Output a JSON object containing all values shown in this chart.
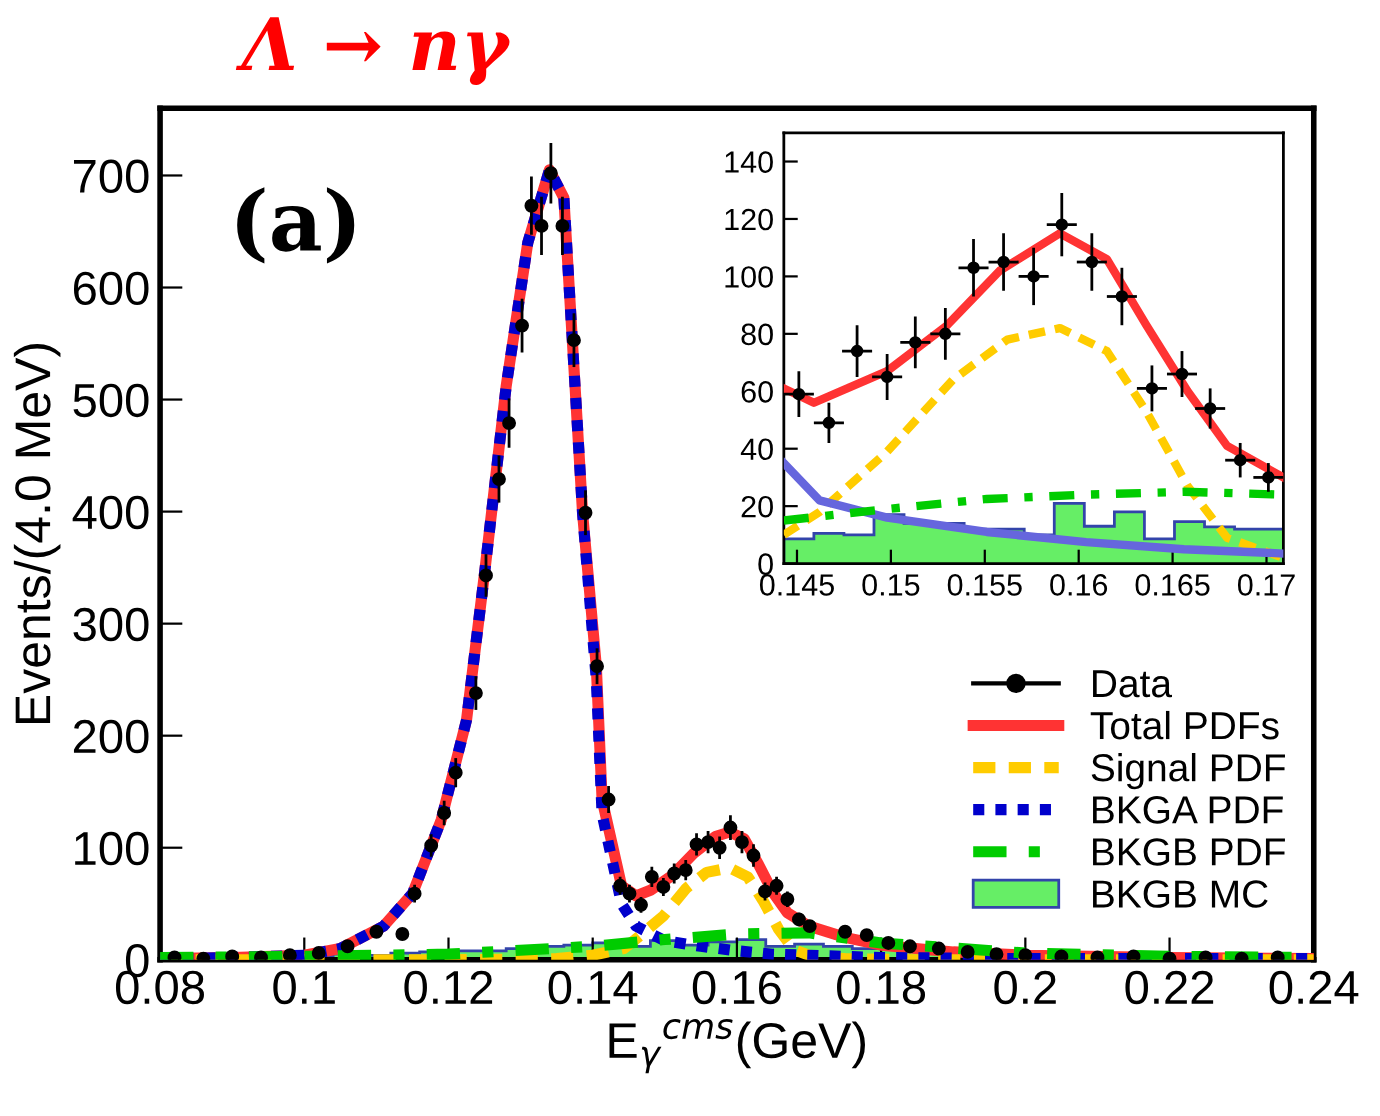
{
  "chart_data": [
    {
      "type": "line",
      "title": "Λ → nγ",
      "xlabel": "E$_{γ}$$^{cms}$(GeV)",
      "ylabel": "Events/(4.0 MeV)",
      "annotations": [
        "(a)"
      ],
      "xlim": [
        0.08,
        0.24
      ],
      "xticks": [
        0.08,
        0.1,
        0.12,
        0.14,
        0.16,
        0.18,
        0.2,
        0.22,
        0.24
      ],
      "ylim": [
        0,
        760
      ],
      "yticks": [
        0,
        100,
        200,
        300,
        400,
        500,
        600,
        700
      ],
      "grid": false,
      "legend": "bottom right",
      "series": [
        {
          "type": "scatter",
          "name": "Data",
          "color": "#000000",
          "marker": "circle",
          "x": [
            0.082,
            0.086,
            0.09,
            0.094,
            0.098,
            0.102,
            0.106,
            0.11,
            0.1136,
            0.1153,
            0.1176,
            0.1194,
            0.121,
            0.1238,
            0.1252,
            0.127,
            0.1284,
            0.1302,
            0.1315,
            0.1329,
            0.1342,
            0.1358,
            0.1374,
            0.139,
            0.1406,
            0.1422,
            0.1438,
            0.1451,
            0.1467,
            0.1482,
            0.1498,
            0.1513,
            0.1529,
            0.1544,
            0.156,
            0.1576,
            0.1591,
            0.1607,
            0.1623,
            0.1639,
            0.1655,
            0.167,
            0.1686,
            0.1701,
            0.175,
            0.178,
            0.181,
            0.184,
            0.188,
            0.192,
            0.196,
            0.2,
            0.205,
            0.21,
            0.215,
            0.22,
            0.225,
            0.23,
            0.235
          ],
          "values": [
            2,
            1,
            3,
            2,
            4,
            6,
            12,
            25,
            23,
            59,
            102,
            131,
            167,
            238,
            343,
            429,
            479,
            566,
            673,
            655,
            702,
            655,
            553,
            399,
            262,
            143,
            66,
            59,
            49,
            74,
            65,
            77,
            80,
            103,
            105,
            100,
            118,
            105,
            93,
            61,
            66,
            54,
            36,
            30,
            25,
            22,
            15,
            12,
            10,
            7,
            5,
            4,
            3,
            2,
            3,
            1,
            2,
            1,
            2
          ],
          "errors": [
            1,
            1,
            2,
            1,
            2,
            2,
            3,
            5,
            5,
            8,
            10,
            11,
            13,
            15,
            19,
            21,
            22,
            24,
            26,
            26,
            27,
            26,
            24,
            20,
            16,
            12,
            8,
            8,
            7,
            9,
            8,
            9,
            9,
            10,
            10,
            10,
            11,
            10,
            10,
            8,
            8,
            7,
            6,
            5,
            5,
            5,
            4,
            3,
            3,
            3,
            2,
            2,
            2,
            1,
            2,
            1,
            1,
            1,
            1
          ],
          "xerrors": [
            0.0008,
            0.0008,
            0.0008,
            0.0008,
            0.0008,
            0.0008,
            0.0008,
            0.0008,
            0.0008,
            0.0008,
            0.0008,
            0.0008,
            0.0008,
            0.0008,
            0.0008,
            0.0008,
            0.0008,
            0.0008,
            0.0008,
            0.0008,
            0.0008,
            0.0008,
            0.0008,
            0.0008,
            0.0008,
            0.0008,
            0.0008,
            0.0008,
            0.0008,
            0.0008,
            0.0008,
            0.0008,
            0.0008,
            0.0008,
            0.0008,
            0.0008,
            0.0008,
            0.0008,
            0.0008,
            0.0008,
            0.0008,
            0.0008,
            0.0008,
            0.0008,
            0.0008,
            0.0008,
            0.0008,
            0.0008,
            0.0008,
            0.0008,
            0.0008,
            0.0008,
            0.0008,
            0.0008,
            0.0008,
            0.0008,
            0.0008,
            0.0008,
            0.0008
          ]
        },
        {
          "type": "line",
          "name": "Total PDFs",
          "color": "#ff3333",
          "line_style": "solid",
          "x": [
            0.08,
            0.09,
            0.1,
            0.105,
            0.111,
            0.115,
            0.119,
            0.1225,
            0.125,
            0.128,
            0.131,
            0.134,
            0.136,
            0.1386,
            0.1405,
            0.1413,
            0.144,
            0.146,
            0.148,
            0.151,
            0.154,
            0.157,
            0.159,
            0.161,
            0.163,
            0.165,
            0.167,
            0.17,
            0.175,
            0.18,
            0.19,
            0.2,
            0.22,
            0.24
          ],
          "values": [
            1,
            2,
            4,
            10,
            30,
            59,
            125,
            214,
            345,
            512,
            640,
            705,
            680,
            398,
            262,
            143,
            66,
            57,
            62,
            75,
            95,
            110,
            114,
            108,
            85,
            60,
            42,
            30,
            20,
            13,
            7,
            4,
            2,
            1
          ]
        },
        {
          "type": "line",
          "name": "Signal PDF",
          "color": "#ffcc00",
          "line_style": "dashed",
          "x": [
            0.08,
            0.12,
            0.135,
            0.14,
            0.1443,
            0.1459,
            0.1498,
            0.153,
            0.1558,
            0.159,
            0.1615,
            0.1636,
            0.1658,
            0.1679,
            0.1709,
            0.175,
            0.185,
            0.24
          ],
          "values": [
            0,
            0,
            1,
            4,
            10,
            18,
            39,
            64,
            78,
            82,
            74,
            53,
            27,
            9,
            2,
            1,
            0,
            0
          ]
        },
        {
          "type": "line",
          "name": "BKGA PDF",
          "color": "#0000cc",
          "line_style": "dotted",
          "x": [
            0.08,
            0.09,
            0.1,
            0.105,
            0.111,
            0.115,
            0.119,
            0.1225,
            0.125,
            0.128,
            0.131,
            0.134,
            0.136,
            0.1386,
            0.1405,
            0.1413,
            0.144,
            0.146,
            0.15,
            0.155,
            0.16,
            0.165,
            0.17,
            0.18,
            0.2,
            0.24
          ],
          "values": [
            1,
            2,
            4,
            10,
            30,
            59,
            125,
            214,
            345,
            512,
            640,
            705,
            680,
            398,
            250,
            130,
            50,
            30,
            17,
            12,
            8,
            5,
            4,
            2,
            1,
            1
          ]
        },
        {
          "type": "line",
          "name": "BKGB PDF",
          "color": "#00cc00",
          "line_style": "dashdot",
          "x": [
            0.08,
            0.1,
            0.12,
            0.14,
            0.15,
            0.16,
            0.17,
            0.18,
            0.2,
            0.22,
            0.24
          ],
          "values": [
            2,
            3,
            5,
            12,
            18,
            23,
            24,
            15,
            6,
            3,
            2
          ]
        },
        {
          "type": "histogram",
          "name": "BKGB MC",
          "color": "#66ee66",
          "bins": [
            0.08,
            0.084,
            0.088,
            0.092,
            0.096,
            0.1,
            0.104,
            0.108,
            0.112,
            0.116,
            0.12,
            0.124,
            0.128,
            0.132,
            0.136,
            0.14,
            0.144,
            0.148,
            0.152,
            0.156,
            0.16,
            0.164,
            0.168,
            0.172,
            0.176,
            0.18,
            0.184,
            0.188,
            0.192,
            0.196,
            0.2,
            0.204,
            0.208,
            0.212,
            0.216,
            0.22,
            0.224,
            0.228,
            0.232,
            0.236,
            0.24
          ],
          "values": [
            3,
            2,
            3,
            2,
            4,
            3,
            5,
            4,
            6,
            7,
            8,
            8,
            10,
            12,
            13,
            15,
            12,
            17,
            13,
            16,
            18,
            12,
            14,
            12,
            10,
            9,
            8,
            7,
            6,
            5,
            5,
            4,
            4,
            3,
            3,
            3,
            2,
            2,
            2,
            2
          ]
        }
      ]
    },
    {
      "type": "line",
      "xlim": [
        0.1443,
        0.1709
      ],
      "xticks": [
        0.145,
        0.15,
        0.155,
        0.16,
        0.165,
        0.17
      ],
      "ylim": [
        0,
        150
      ],
      "yticks": [
        0,
        20,
        40,
        60,
        80,
        100,
        120,
        140
      ],
      "grid": false,
      "series": [
        {
          "type": "scatter",
          "color": "#000000",
          "marker": "circle",
          "x": [
            0.1451,
            0.1467,
            0.1482,
            0.1498,
            0.1513,
            0.1529,
            0.1544,
            0.156,
            0.1576,
            0.1591,
            0.1607,
            0.1623,
            0.1639,
            0.1655,
            0.167,
            0.1686,
            0.1701
          ],
          "values": [
            59,
            49,
            74,
            65,
            77,
            80,
            103,
            105,
            100,
            118,
            105,
            93,
            61,
            66,
            54,
            36,
            30
          ],
          "errors": [
            8,
            7,
            9,
            8,
            9,
            9,
            10,
            10,
            10,
            11,
            10,
            10,
            8,
            8,
            7,
            6,
            5
          ],
          "xerrors": [
            0.0008,
            0.0008,
            0.0008,
            0.0008,
            0.0008,
            0.0008,
            0.0008,
            0.0008,
            0.0008,
            0.0008,
            0.0008,
            0.0008,
            0.0008,
            0.0008,
            0.0008,
            0.0008,
            0.0008
          ]
        },
        {
          "type": "line",
          "color": "#ff3333",
          "line_style": "solid",
          "x": [
            0.1443,
            0.1459,
            0.1498,
            0.153,
            0.1558,
            0.159,
            0.1615,
            0.1636,
            0.1658,
            0.1679,
            0.1709
          ],
          "values": [
            61,
            56,
            67,
            83,
            102,
            115,
            106,
            83,
            60,
            41,
            30
          ]
        },
        {
          "type": "line",
          "color": "#ffcc00",
          "line_style": "dashed",
          "x": [
            0.1443,
            0.1462,
            0.1498,
            0.1533,
            0.1562,
            0.159,
            0.1615,
            0.1636,
            0.1658,
            0.1679,
            0.1709
          ],
          "values": [
            10,
            18,
            39,
            64,
            78,
            82,
            74,
            53,
            27,
            9,
            2
          ]
        },
        {
          "type": "line",
          "color": "#6666dd",
          "line_style": "solid",
          "x": [
            0.1443,
            0.1462,
            0.1498,
            0.1551,
            0.1604,
            0.1656,
            0.1709
          ],
          "values": [
            35,
            22,
            16,
            11,
            7.5,
            5,
            3.5
          ]
        },
        {
          "type": "line",
          "color": "#00cc00",
          "line_style": "dashdot",
          "x": [
            0.1443,
            0.1498,
            0.1551,
            0.1604,
            0.1656,
            0.1709
          ],
          "values": [
            15,
            19,
            22.5,
            24,
            25,
            24
          ]
        },
        {
          "type": "histogram",
          "color": "#66ee66",
          "bins": [
            0.1443,
            0.1459,
            0.1475,
            0.1491,
            0.1507,
            0.1523,
            0.1539,
            0.1555,
            0.1571,
            0.1587,
            0.1603,
            0.1619,
            0.1635,
            0.1651,
            0.1667,
            0.1683,
            0.1699,
            0.1709
          ],
          "values": [
            8.6,
            10.5,
            10,
            17,
            14,
            14,
            12,
            12,
            10,
            21,
            13,
            18,
            8.6,
            14.6,
            12.8,
            12,
            12
          ]
        }
      ]
    }
  ]
}
